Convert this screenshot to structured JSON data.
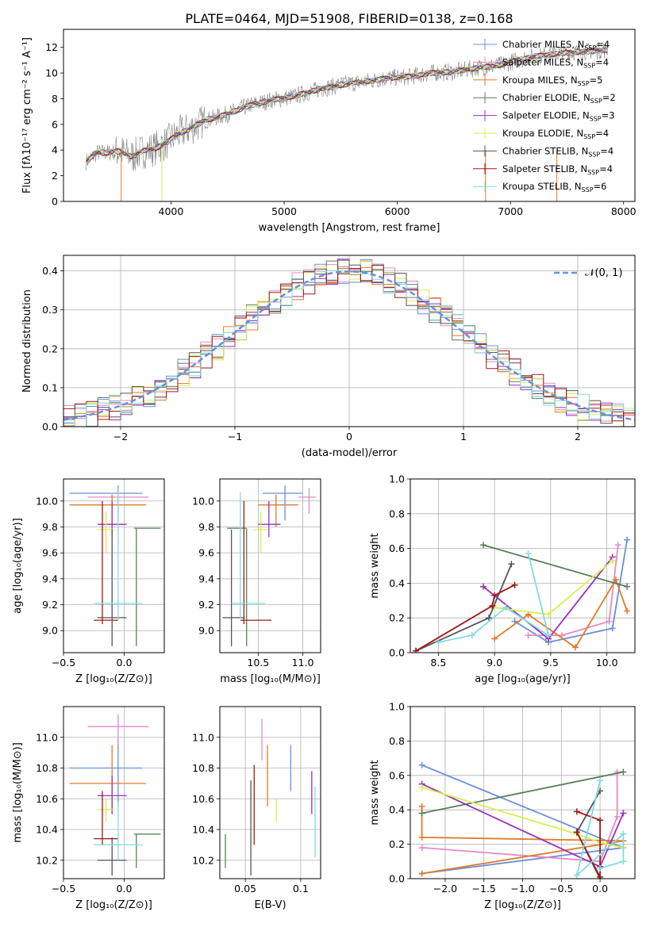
{
  "figure_title": "PLATE=0464, MJD=51908, FIBERID=0138, z=0.168",
  "colors": {
    "Chabrier MILES": "#6a8fdc",
    "Salpeter MILES": "#e58ac4",
    "Kroupa MILES": "#e07b2a",
    "Chabrier ELODIE": "#5a7f5a",
    "Salpeter ELODIE": "#9b30b8",
    "Kroupa ELODIE": "#d6ef50",
    "Chabrier STELIB": "#555555",
    "Salpeter STELIB": "#a01818",
    "Kroupa STELIB": "#80dce0"
  },
  "legend_entries": [
    {
      "key": "Chabrier MILES",
      "label": "Chabrier MILES, N",
      "sub": "SSP",
      "suffix": "=4"
    },
    {
      "key": "Salpeter MILES",
      "label": "Salpeter MILES, N",
      "sub": "SSP",
      "suffix": "=4"
    },
    {
      "key": "Kroupa MILES",
      "label": "Kroupa MILES, N",
      "sub": "SSP",
      "suffix": "=5"
    },
    {
      "key": "Chabrier ELODIE",
      "label": "Chabrier ELODIE, N",
      "sub": "SSP",
      "suffix": "=2"
    },
    {
      "key": "Salpeter ELODIE",
      "label": "Salpeter ELODIE, N",
      "sub": "SSP",
      "suffix": "=3"
    },
    {
      "key": "Kroupa ELODIE",
      "label": "Kroupa ELODIE, N",
      "sub": "SSP",
      "suffix": "=4"
    },
    {
      "key": "Chabrier STELIB",
      "label": "Chabrier STELIB, N",
      "sub": "SSP",
      "suffix": "=4"
    },
    {
      "key": "Salpeter STELIB",
      "label": "Salpeter STELIB, N",
      "sub": "SSP",
      "suffix": "=4"
    },
    {
      "key": "Kroupa STELIB",
      "label": "Kroupa STELIB, N",
      "sub": "SSP",
      "suffix": "=6"
    }
  ],
  "chart_data": [
    {
      "id": "spectrum",
      "type": "line",
      "xlabel": "wavelength [Angstrom, rest frame]",
      "ylabel": "Flux [fλ10⁻¹⁷ erg cm⁻² s⁻¹ A⁻¹]",
      "xlim": [
        3050,
        8100
      ],
      "ylim": [
        0,
        13.4
      ],
      "xticks": [
        4000,
        5000,
        6000,
        7000,
        8000
      ],
      "yticks": [
        0,
        2,
        4,
        6,
        8,
        10,
        12
      ],
      "grid": false,
      "legend": "right",
      "continuum": {
        "x": [
          3250,
          3350,
          3450,
          3550,
          3650,
          3750,
          3850,
          3950,
          4050,
          4150,
          4300,
          4500,
          4700,
          4900,
          5100,
          5300,
          5500,
          5700,
          5900,
          6100,
          6300,
          6500,
          6700,
          6900,
          7100,
          7300,
          7500,
          7700,
          7850
        ],
        "y": [
          3.1,
          3.8,
          3.8,
          3.9,
          3.5,
          3.9,
          4.1,
          4.5,
          5.2,
          5.6,
          6.3,
          6.8,
          7.5,
          7.9,
          8.2,
          8.7,
          9.1,
          9.3,
          9.6,
          9.7,
          10.0,
          10.1,
          10.4,
          10.6,
          11.1,
          11.4,
          11.6,
          11.7,
          11.8
        ]
      }
    },
    {
      "id": "residuals",
      "type": "area",
      "xlabel": "(data-model)/error",
      "ylabel": "Normed distribution",
      "xlim": [
        -2.5,
        2.5
      ],
      "ylim": [
        0,
        0.44
      ],
      "xticks": [
        -2,
        -1,
        0,
        1,
        2
      ],
      "yticks": [
        0.0,
        0.1,
        0.2,
        0.3,
        0.4
      ],
      "grid": true,
      "legend": "top-right",
      "normal_label": "𝒩(0, 1)",
      "bin_width": 0.1
    },
    {
      "id": "age_vs_Z",
      "type": "scatter",
      "xlabel": "Z [log₁₀(Z/Z⊙)]",
      "ylabel": "age  [log₁₀(age/yr)]",
      "xlim": [
        -0.5,
        0.33
      ],
      "ylim": [
        8.83,
        10.17
      ],
      "xticks": [
        -0.5,
        0.0
      ],
      "yticks": [
        9.0,
        9.2,
        9.4,
        9.6,
        9.8,
        10.0
      ],
      "grid": true
    },
    {
      "id": "age_vs_mass",
      "type": "scatter",
      "xlabel": "mass [log₁₀(M/M⊙)]",
      "xlim": [
        10.07,
        11.2
      ],
      "ylim": [
        8.83,
        10.17
      ],
      "xticks": [
        10.5,
        11.0
      ],
      "yticks": [
        9.0,
        9.2,
        9.4,
        9.6,
        9.8,
        10.0
      ],
      "grid": true
    },
    {
      "id": "weight_vs_age",
      "type": "line",
      "xlabel": "age  [log₁₀(age/yr)]",
      "ylabel": "mass weight",
      "xlim": [
        8.25,
        10.25
      ],
      "ylim": [
        0,
        1
      ],
      "xticks": [
        8.5,
        9.0,
        9.5,
        10.0
      ],
      "yticks": [
        0.0,
        0.2,
        0.4,
        0.6,
        0.8,
        1.0
      ],
      "grid": true,
      "series": [
        {
          "key": "Chabrier MILES",
          "x": [
            10.18,
            10.05,
            9.48,
            9.18
          ],
          "y": [
            0.65,
            0.14,
            0.06,
            0.18
          ]
        },
        {
          "key": "Salpeter MILES",
          "x": [
            10.1,
            10.02,
            9.6,
            9.3
          ],
          "y": [
            0.62,
            0.18,
            0.1,
            0.1
          ]
        },
        {
          "key": "Kroupa MILES",
          "x": [
            10.18,
            10.08,
            9.72,
            9.3,
            9.0
          ],
          "y": [
            0.24,
            0.42,
            0.03,
            0.22,
            0.08
          ]
        },
        {
          "key": "Chabrier ELODIE",
          "x": [
            10.18,
            8.9
          ],
          "y": [
            0.38,
            0.62
          ]
        },
        {
          "key": "Salpeter ELODIE",
          "x": [
            10.05,
            9.48,
            8.9
          ],
          "y": [
            0.55,
            0.08,
            0.38
          ]
        },
        {
          "key": "Kroupa ELODIE",
          "x": [
            10.05,
            9.48,
            9.0
          ],
          "y": [
            0.53,
            0.22,
            0.26
          ]
        },
        {
          "key": "Chabrier STELIB",
          "x": [
            9.15,
            8.95,
            8.3
          ],
          "y": [
            0.51,
            0.2,
            0.01
          ]
        },
        {
          "key": "Salpeter STELIB",
          "x": [
            9.18,
            9.0,
            8.98,
            8.3
          ],
          "y": [
            0.39,
            0.33,
            0.27,
            0.01
          ]
        },
        {
          "key": "Kroupa STELIB",
          "x": [
            9.3,
            9.48,
            9.1,
            8.8,
            8.5
          ],
          "y": [
            0.57,
            0.1,
            0.26,
            0.1,
            0.06
          ]
        }
      ]
    },
    {
      "id": "mass_vs_Z",
      "type": "scatter",
      "xlabel": "Z [log₁₀(Z/Z⊙)]",
      "ylabel": "mass [log₁₀(M/M⊙)]",
      "xlim": [
        -0.5,
        0.33
      ],
      "ylim": [
        10.08,
        11.2
      ],
      "xticks": [
        -0.5,
        0.0
      ],
      "yticks": [
        10.2,
        10.4,
        10.6,
        10.8,
        11.0
      ],
      "grid": true
    },
    {
      "id": "mass_vs_EBV",
      "type": "scatter",
      "xlabel": "E(B-V)",
      "xlim": [
        0.027,
        0.118
      ],
      "ylim": [
        10.08,
        11.2
      ],
      "xticks": [
        0.05,
        0.1
      ],
      "yticks": [
        10.2,
        10.4,
        10.6,
        10.8,
        11.0
      ],
      "grid": true
    },
    {
      "id": "weight_vs_Z",
      "type": "line",
      "xlabel": "Z [log₁₀(Z/Z⊙)]",
      "ylabel": "mass weight",
      "xlim": [
        -2.45,
        0.45
      ],
      "ylim": [
        0,
        1
      ],
      "xticks": [
        -2.0,
        -1.5,
        -1.0,
        -0.5,
        0.0
      ],
      "yticks": [
        0.0,
        0.2,
        0.4,
        0.6,
        0.8,
        1.0
      ],
      "grid": true,
      "series": [
        {
          "key": "Chabrier MILES",
          "x": [
            -2.3,
            0.3,
            -2.3
          ],
          "y": [
            0.66,
            0.18,
            0.03
          ]
        },
        {
          "key": "Salpeter MILES",
          "x": [
            0.22,
            0.22,
            0.0,
            -2.3
          ],
          "y": [
            0.62,
            0.36,
            0.1,
            0.18
          ]
        },
        {
          "key": "Kroupa MILES",
          "x": [
            -2.3,
            -2.3,
            0.3,
            -2.3
          ],
          "y": [
            0.42,
            0.24,
            0.22,
            0.03
          ]
        },
        {
          "key": "Chabrier ELODIE",
          "x": [
            0.3,
            -2.3
          ],
          "y": [
            0.62,
            0.38
          ]
        },
        {
          "key": "Salpeter ELODIE",
          "x": [
            0.3,
            0.0,
            -2.3
          ],
          "y": [
            0.38,
            0.07,
            0.55
          ]
        },
        {
          "key": "Kroupa ELODIE",
          "x": [
            0.3,
            0.0,
            -0.3,
            -2.3
          ],
          "y": [
            0.18,
            0.21,
            0.26,
            0.53
          ]
        },
        {
          "key": "Chabrier STELIB",
          "x": [
            0.0,
            -0.3,
            0.0
          ],
          "y": [
            0.51,
            0.27,
            0.0
          ]
        },
        {
          "key": "Salpeter STELIB",
          "x": [
            -0.3,
            0.0,
            0.0,
            -0.3
          ],
          "y": [
            0.39,
            0.34,
            0.01,
            0.27
          ]
        },
        {
          "key": "Kroupa STELIB",
          "x": [
            0.0,
            -0.3,
            0.3,
            0.3,
            0.0
          ],
          "y": [
            0.57,
            0.02,
            0.26,
            0.1,
            0.06
          ]
        }
      ]
    }
  ],
  "ssp_points": [
    {
      "key": "Chabrier MILES",
      "Z": -0.05,
      "Zerr": [
        -0.45,
        0.15
      ],
      "age": 10.06,
      "ageErr": [
        9.85,
        10.12
      ],
      "mass": 10.8,
      "massErr": [
        10.55,
        11.0
      ],
      "ebv": 0.091,
      "ebvMassErr": [
        10.65,
        10.95
      ]
    },
    {
      "key": "Salpeter MILES",
      "Z": -0.05,
      "Zerr": [
        -0.3,
        0.2
      ],
      "age": 10.03,
      "ageErr": [
        9.9,
        10.1
      ],
      "mass": 11.07,
      "massErr": [
        10.95,
        11.15
      ],
      "ebv": 0.065,
      "ebvMassErr": [
        10.85,
        11.12
      ]
    },
    {
      "key": "Kroupa MILES",
      "Z": -0.1,
      "Zerr": [
        -0.45,
        0.18
      ],
      "age": 9.97,
      "ageErr": [
        9.8,
        10.05
      ],
      "mass": 10.7,
      "massErr": [
        10.5,
        10.95
      ],
      "ebv": 0.07,
      "ebvMassErr": [
        10.55,
        10.95
      ]
    },
    {
      "key": "Chabrier ELODIE",
      "Z": 0.1,
      "Zerr": [
        0.08,
        0.3
      ],
      "age": 9.79,
      "ageErr": [
        8.88,
        9.79
      ],
      "mass": 10.37,
      "massErr": [
        10.15,
        10.37
      ],
      "ebv": 0.032,
      "ebvMassErr": [
        10.15,
        10.37
      ]
    },
    {
      "key": "Salpeter ELODIE",
      "Z": -0.1,
      "Zerr": [
        -0.22,
        0.02
      ],
      "age": 9.82,
      "ageErr": [
        9.72,
        10.0
      ],
      "mass": 10.62,
      "massErr": [
        10.5,
        10.75
      ],
      "ebv": 0.11,
      "ebvMassErr": [
        10.5,
        10.78
      ]
    },
    {
      "key": "Kroupa ELODIE",
      "Z": -0.15,
      "Zerr": [
        -0.22,
        -0.08
      ],
      "age": 9.78,
      "ageErr": [
        9.6,
        9.92
      ],
      "mass": 10.53,
      "massErr": [
        10.45,
        10.6
      ],
      "ebv": 0.078,
      "ebvMassErr": [
        10.45,
        10.6
      ]
    },
    {
      "key": "Chabrier STELIB",
      "Z": -0.1,
      "Zerr": [
        -0.22,
        0.02
      ],
      "age": 9.1,
      "ageErr": [
        9.78,
        8.88
      ],
      "mass": 10.2,
      "massErr": [
        10.1,
        10.35
      ],
      "ebv": 0.055,
      "ebvMassErr": [
        10.1,
        10.72
      ]
    },
    {
      "key": "Salpeter STELIB",
      "Z": -0.18,
      "Zerr": [
        -0.25,
        -0.05
      ],
      "age": 9.08,
      "ageErr": [
        9.05,
        10.0
      ],
      "mass": 10.34,
      "massErr": [
        10.3,
        10.65
      ],
      "ebv": 0.058,
      "ebvMassErr": [
        10.3,
        10.82
      ]
    },
    {
      "key": "Kroupa STELIB",
      "Z": -0.05,
      "Zerr": [
        -0.25,
        0.15
      ],
      "age": 9.21,
      "ageErr": [
        9.1,
        10.07
      ],
      "mass": 10.3,
      "massErr": [
        10.2,
        10.58
      ],
      "ebv": 0.113,
      "ebvMassErr": [
        10.22,
        10.68
      ]
    }
  ]
}
